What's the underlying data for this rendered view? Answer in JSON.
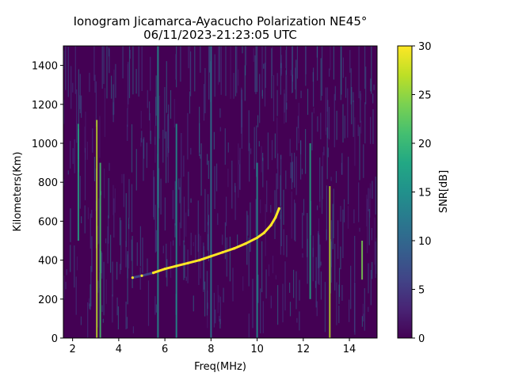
{
  "chart_data": {
    "type": "heatmap",
    "title_line1": "Ionogram Jicamarca-Ayacucho Polarization NE45°",
    "title_line2": "06/11/2023-21:23:05 UTC",
    "xlabel": "Freq(MHz)",
    "ylabel": "Kilometers(Km)",
    "xlim": [
      1.6,
      15.2
    ],
    "ylim": [
      0,
      1500
    ],
    "xticks": [
      2,
      4,
      6,
      8,
      10,
      12,
      14
    ],
    "yticks": [
      0,
      200,
      400,
      600,
      800,
      1000,
      1200,
      1400
    ],
    "colorbar": {
      "label": "SNR[dB]",
      "range": [
        0,
        30
      ],
      "ticks": [
        0,
        5,
        10,
        15,
        20,
        25,
        30
      ],
      "colormap": "viridis"
    },
    "colors": {
      "background": "#440154",
      "trace": "#fde725"
    },
    "echo_trace": [
      {
        "freq": 4.6,
        "km": 310
      },
      {
        "freq": 5.0,
        "km": 320
      },
      {
        "freq": 5.5,
        "km": 335
      },
      {
        "freq": 6.0,
        "km": 355
      },
      {
        "freq": 6.5,
        "km": 370
      },
      {
        "freq": 7.0,
        "km": 385
      },
      {
        "freq": 7.5,
        "km": 400
      },
      {
        "freq": 8.0,
        "km": 420
      },
      {
        "freq": 8.5,
        "km": 440
      },
      {
        "freq": 9.0,
        "km": 460
      },
      {
        "freq": 9.5,
        "km": 485
      },
      {
        "freq": 10.0,
        "km": 515
      },
      {
        "freq": 10.3,
        "km": 540
      },
      {
        "freq": 10.6,
        "km": 580
      },
      {
        "freq": 10.8,
        "km": 620
      },
      {
        "freq": 10.95,
        "km": 665
      }
    ],
    "interference_lines": [
      {
        "freq": 2.25,
        "km_from": 500,
        "km_to": 1100,
        "snr": 18
      },
      {
        "freq": 3.05,
        "km_from": 0,
        "km_to": 1120,
        "snr": 27
      },
      {
        "freq": 3.2,
        "km_from": 0,
        "km_to": 900,
        "snr": 22
      },
      {
        "freq": 5.7,
        "km_from": 0,
        "km_to": 1500,
        "snr": 16
      },
      {
        "freq": 6.5,
        "km_from": 0,
        "km_to": 1100,
        "snr": 14
      },
      {
        "freq": 8.0,
        "km_from": 0,
        "km_to": 1500,
        "snr": 12
      },
      {
        "freq": 10.0,
        "km_from": 0,
        "km_to": 900,
        "snr": 16
      },
      {
        "freq": 12.3,
        "km_from": 200,
        "km_to": 1000,
        "snr": 18
      },
      {
        "freq": 13.15,
        "km_from": 0,
        "km_to": 780,
        "snr": 28
      },
      {
        "freq": 14.55,
        "km_from": 300,
        "km_to": 500,
        "snr": 25
      }
    ]
  }
}
